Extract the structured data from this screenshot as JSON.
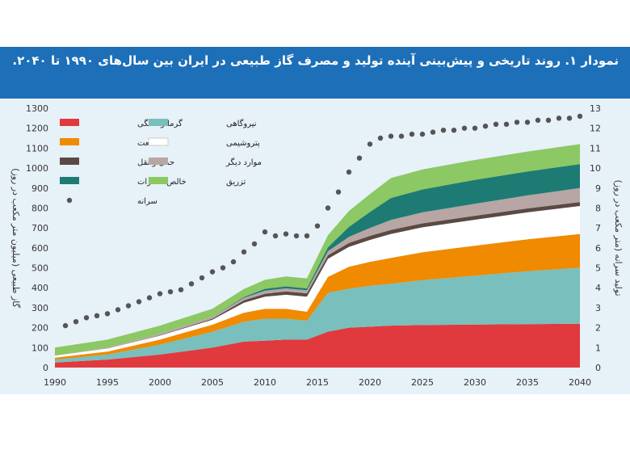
{
  "header": {
    "title": "نمودار ۱. روند تاریخی و پیش‌بینی آینده تولید و مصرف گاز طبیعی در ایران بین سال‌های ۱۹۹۰ تا ۲۰۴۰."
  },
  "colors": {
    "banner": "#1d6fb8",
    "plot_background": "#e6f1f8",
    "residential": "#e03a3e",
    "power": "#79bfbd",
    "industry": "#f08a00",
    "petrochemical": "#ffffff",
    "transport": "#5b4a44",
    "other": "#b8a6a4",
    "net_export": "#1e7b73",
    "injection": "#8cc863",
    "production": "#555555"
  },
  "chart_data": {
    "type": "area",
    "stacked": true,
    "x": [
      1990,
      1995,
      2000,
      2005,
      2008,
      2010,
      2012,
      2014,
      2016,
      2018,
      2020,
      2022,
      2025,
      2030,
      2035,
      2040
    ],
    "x_ticks": [
      "1990",
      "1995",
      "2000",
      "2005",
      "2010",
      "2015",
      "2020",
      "2025",
      "2030",
      "2035",
      "2040"
    ],
    "xlim": [
      1990,
      2040
    ],
    "ylim_left": [
      0,
      1300
    ],
    "yticks_left": [
      "0",
      "100",
      "200",
      "300",
      "400",
      "500",
      "600",
      "700",
      "800",
      "900",
      "1000",
      "1100",
      "1200",
      "1300"
    ],
    "ylabel_left": "گاز طبیعی (میلیون متر مکعب در روز)",
    "ylim_right": [
      0,
      13
    ],
    "yticks_right": [
      "0",
      "1",
      "2",
      "3",
      "4",
      "5",
      "6",
      "7",
      "8",
      "9",
      "10",
      "11",
      "12",
      "13"
    ],
    "ylabel_right": "تولید سرانه (متر مکعب در روز)",
    "legend_position": "top-left",
    "series": [
      {
        "name": "گرما و خانگی",
        "key": "residential",
        "values": [
          25,
          40,
          65,
          100,
          130,
          135,
          140,
          140,
          180,
          200,
          205,
          210,
          213,
          216,
          218,
          220
        ]
      },
      {
        "name": "نیروگاهی",
        "key": "power",
        "values": [
          15,
          25,
          50,
          80,
          100,
          110,
          105,
          95,
          195,
          195,
          205,
          210,
          225,
          245,
          265,
          280
        ]
      },
      {
        "name": "صنعت",
        "key": "industry",
        "values": [
          10,
          15,
          25,
          35,
          45,
          50,
          50,
          45,
          80,
          110,
          120,
          130,
          140,
          150,
          160,
          170
        ]
      },
      {
        "name": "پتروشیمی",
        "key": "petrochemical",
        "values": [
          10,
          15,
          20,
          25,
          50,
          60,
          70,
          75,
          90,
          100,
          110,
          120,
          125,
          130,
          135,
          140
        ]
      },
      {
        "name": "حمل و نقل",
        "key": "transport",
        "values": [
          0,
          0,
          2,
          5,
          12,
          15,
          17,
          17,
          18,
          20,
          20,
          20,
          20,
          20,
          20,
          20
        ]
      },
      {
        "name": "موارد دیگر",
        "key": "other",
        "values": [
          0,
          5,
          8,
          10,
          12,
          15,
          15,
          15,
          20,
          30,
          40,
          50,
          55,
          60,
          65,
          70
        ]
      },
      {
        "name": "خالص صادرات",
        "key": "net_export",
        "values": [
          0,
          0,
          0,
          0,
          5,
          10,
          10,
          10,
          20,
          50,
          80,
          110,
          115,
          120,
          120,
          120
        ]
      },
      {
        "name": "تزریق",
        "key": "injection",
        "values": [
          40,
          40,
          40,
          40,
          40,
          45,
          50,
          50,
          60,
          80,
          90,
          100,
          100,
          100,
          100,
          100
        ]
      }
    ],
    "production_series": {
      "name": "سرانه",
      "key": "production",
      "axis": "right",
      "x": [
        1991,
        1992,
        1993,
        1994,
        1995,
        1996,
        1997,
        1998,
        1999,
        2000,
        2001,
        2002,
        2003,
        2004,
        2005,
        2006,
        2007,
        2008,
        2009,
        2010,
        2011,
        2012,
        2013,
        2014,
        2015,
        2016,
        2017,
        2018,
        2019,
        2020,
        2021,
        2022,
        2023,
        2024,
        2025,
        2026,
        2027,
        2028,
        2029,
        2030,
        2031,
        2032,
        2033,
        2034,
        2035,
        2036,
        2037,
        2038,
        2039,
        2040
      ],
      "values": [
        2.1,
        2.3,
        2.5,
        2.6,
        2.7,
        2.9,
        3.1,
        3.3,
        3.5,
        3.7,
        3.8,
        3.9,
        4.2,
        4.5,
        4.8,
        5.0,
        5.3,
        5.8,
        6.2,
        6.8,
        6.6,
        6.7,
        6.6,
        6.6,
        7.1,
        8.0,
        8.8,
        9.8,
        10.5,
        11.2,
        11.5,
        11.6,
        11.6,
        11.7,
        11.7,
        11.8,
        11.9,
        11.9,
        12.0,
        12.0,
        12.1,
        12.2,
        12.2,
        12.3,
        12.3,
        12.4,
        12.4,
        12.5,
        12.5,
        12.6
      ]
    }
  }
}
